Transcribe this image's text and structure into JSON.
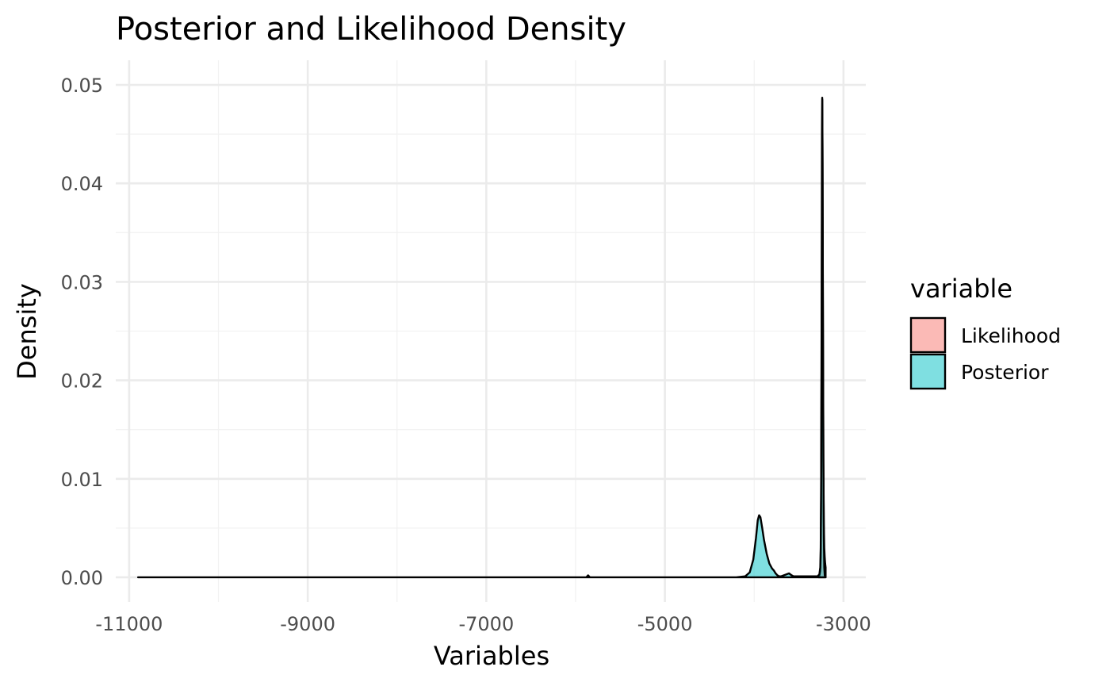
{
  "chart_data": {
    "type": "area",
    "title": "Posterior and Likelihood Density",
    "xlabel": "Variables",
    "ylabel": "Density",
    "xlim": [
      -11150,
      -2750
    ],
    "ylim": [
      -0.0025,
      0.0525
    ],
    "x_ticks": [
      -11000,
      -9000,
      -7000,
      -5000,
      -3000
    ],
    "x_tick_labels": [
      "-11000",
      "-9000",
      "-7000",
      "-5000",
      "-3000"
    ],
    "y_ticks": [
      0,
      0.01,
      0.02,
      0.03,
      0.04,
      0.05
    ],
    "y_tick_labels": [
      "0.00",
      "0.01",
      "0.02",
      "0.03",
      "0.04",
      "0.05"
    ],
    "grid": true,
    "legend": {
      "title": "variable",
      "placement": "right"
    },
    "series": [
      {
        "name": "Likelihood",
        "color": "#F8766D",
        "points": [
          [
            -3280,
            0
          ],
          [
            -3270,
            0.0001
          ],
          [
            -3260,
            0.0006
          ],
          [
            -3255,
            0.002
          ],
          [
            -3250,
            0.008
          ],
          [
            -3245,
            0.022
          ],
          [
            -3240,
            0.04
          ],
          [
            -3237,
            0.0485
          ],
          [
            -3234,
            0.042
          ],
          [
            -3230,
            0.026
          ],
          [
            -3225,
            0.012
          ],
          [
            -3220,
            0.0055
          ],
          [
            -3215,
            0.003
          ],
          [
            -3210,
            0.002
          ],
          [
            -3205,
            0.0014
          ],
          [
            -3200,
            0.001
          ],
          [
            -3200,
            0
          ]
        ]
      },
      {
        "name": "Posterior",
        "color": "#00BFC4",
        "points": [
          [
            -10900,
            0
          ],
          [
            -6000,
            0
          ],
          [
            -5880,
            0
          ],
          [
            -5860,
            0.0002
          ],
          [
            -5840,
            0
          ],
          [
            -4200,
            0
          ],
          [
            -4100,
            0.0001
          ],
          [
            -4050,
            0.0005
          ],
          [
            -4010,
            0.0018
          ],
          [
            -3980,
            0.004
          ],
          [
            -3960,
            0.0058
          ],
          [
            -3945,
            0.0063
          ],
          [
            -3930,
            0.0061
          ],
          [
            -3910,
            0.005
          ],
          [
            -3890,
            0.0038
          ],
          [
            -3860,
            0.0024
          ],
          [
            -3830,
            0.0014
          ],
          [
            -3800,
            0.0009
          ],
          [
            -3780,
            0.0007
          ],
          [
            -3760,
            0.0004
          ],
          [
            -3740,
            0.0002
          ],
          [
            -3720,
            0.0001
          ],
          [
            -3700,
            0.0001
          ],
          [
            -3670,
            0.0002
          ],
          [
            -3640,
            0.0003
          ],
          [
            -3610,
            0.0004
          ],
          [
            -3580,
            0.0002
          ],
          [
            -3560,
            0.0001
          ],
          [
            -3520,
            0.0001
          ],
          [
            -3480,
            0.0001
          ],
          [
            -3440,
            0.0001
          ],
          [
            -3400,
            0.0001
          ],
          [
            -3360,
            0.0001
          ],
          [
            -3320,
            0.0001
          ],
          [
            -3290,
            0.0001
          ],
          [
            -3270,
            0.0003
          ],
          [
            -3260,
            0.001
          ],
          [
            -3255,
            0.003
          ],
          [
            -3250,
            0.01
          ],
          [
            -3245,
            0.026
          ],
          [
            -3241,
            0.045
          ],
          [
            -3238,
            0.0487
          ],
          [
            -3235,
            0.044
          ],
          [
            -3230,
            0.028
          ],
          [
            -3225,
            0.012
          ],
          [
            -3220,
            0.004
          ],
          [
            -3215,
            0.001
          ],
          [
            -3210,
            0.0002
          ],
          [
            -3200,
            0
          ]
        ]
      }
    ]
  }
}
